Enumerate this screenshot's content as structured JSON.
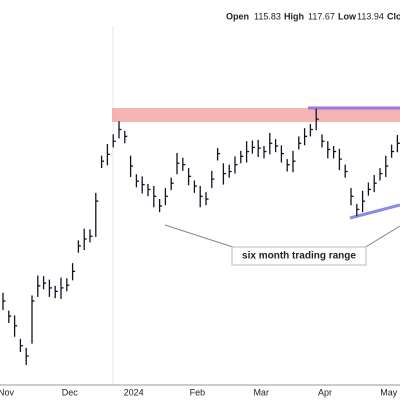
{
  "header": {
    "open_label": "Open",
    "open": 115.83,
    "high_label": "High",
    "high": 117.67,
    "low_label": "Low",
    "low": 113.94,
    "close_label": "Clo"
  },
  "chart_data": {
    "type": "ohlc",
    "color": "#111122",
    "annotation": "six month trading range",
    "ylim": [
      78,
      131
    ],
    "categories": [
      "Nov",
      null,
      null,
      null,
      null,
      null,
      null,
      null,
      null,
      null,
      null,
      "Dec",
      null,
      null,
      null,
      null,
      null,
      null,
      null,
      null,
      null,
      null,
      "2024",
      null,
      null,
      null,
      null,
      null,
      null,
      null,
      null,
      null,
      null,
      "Feb",
      null,
      null,
      null,
      null,
      null,
      null,
      null,
      null,
      null,
      null,
      "Mar",
      null,
      null,
      null,
      null,
      null,
      null,
      null,
      null,
      null,
      null,
      "Apr",
      null,
      null,
      null,
      null,
      null,
      null,
      null,
      null,
      null,
      null,
      "May",
      null,
      null
    ],
    "high": [
      91.4,
      88.8,
      88.1,
      84.7,
      83.4,
      91.0,
      93.9,
      93.8,
      93.3,
      92.4,
      93.6,
      93.5,
      95.7,
      99.0,
      100.7,
      100.6,
      105.9,
      111.3,
      113.0,
      114.4,
      116.3,
      114.9,
      111.3,
      108.6,
      108.3,
      107.2,
      106.9,
      105.0,
      106.6,
      108.1,
      111.7,
      111.0,
      109.5,
      107.7,
      106.9,
      106.0,
      109.1,
      112.4,
      110.2,
      110.0,
      111.2,
      112.0,
      113.4,
      113.5,
      113.6,
      112.7,
      114.6,
      113.7,
      112.8,
      110.8,
      112.0,
      114.1,
      115.3,
      115.9,
      118.1,
      114.4,
      113.4,
      112.7,
      112.3,
      110.0,
      106.6,
      104.3,
      106.2,
      107.4,
      108.5,
      109.5,
      111.3,
      112.9,
      114.3
    ],
    "low": [
      88.9,
      87.0,
      85.0,
      82.8,
      80.9,
      84.0,
      90.8,
      91.9,
      90.8,
      90.6,
      90.5,
      91.6,
      93.2,
      97.2,
      97.6,
      98.7,
      99.5,
      109.5,
      109.9,
      112.5,
      113.8,
      113.1,
      108.2,
      106.7,
      105.8,
      105.4,
      103.8,
      103.1,
      104.1,
      106.3,
      108.6,
      109.1,
      107.0,
      105.9,
      103.8,
      104.1,
      106.6,
      110.6,
      107.1,
      108.1,
      108.7,
      110.2,
      110.3,
      111.6,
      111.1,
      110.9,
      111.5,
      111.8,
      110.3,
      109.0,
      108.9,
      112.2,
      112.8,
      114.1,
      115.0,
      112.5,
      110.9,
      110.9,
      109.2,
      108.1,
      104.1,
      102.5,
      103.1,
      105.5,
      106.0,
      107.7,
      108.2,
      111.0,
      111.8
    ],
    "close": [
      90.2,
      88.0,
      86.6,
      83.7,
      82.2,
      90.2,
      92.4,
      92.8,
      92.1,
      91.6,
      92.1,
      92.5,
      94.5,
      98.2,
      99.2,
      99.6,
      104.7,
      110.5,
      111.5,
      113.4,
      115.1,
      114.1,
      109.8,
      107.6,
      107.1,
      106.4,
      105.4,
      104.0,
      105.4,
      107.3,
      110.2,
      110.0,
      108.3,
      106.9,
      105.4,
      105.0,
      107.9,
      111.6,
      108.7,
      109.0,
      110.0,
      111.2,
      111.9,
      112.5,
      112.4,
      111.9,
      113.1,
      112.7,
      111.6,
      110.0,
      110.5,
      113.1,
      114.1,
      115.1,
      116.6,
      113.4,
      112.2,
      111.9,
      110.8,
      109.0,
      105.4,
      103.5,
      104.7,
      106.4,
      107.3,
      108.7,
      109.8,
      111.9,
      113.1
    ]
  }
}
